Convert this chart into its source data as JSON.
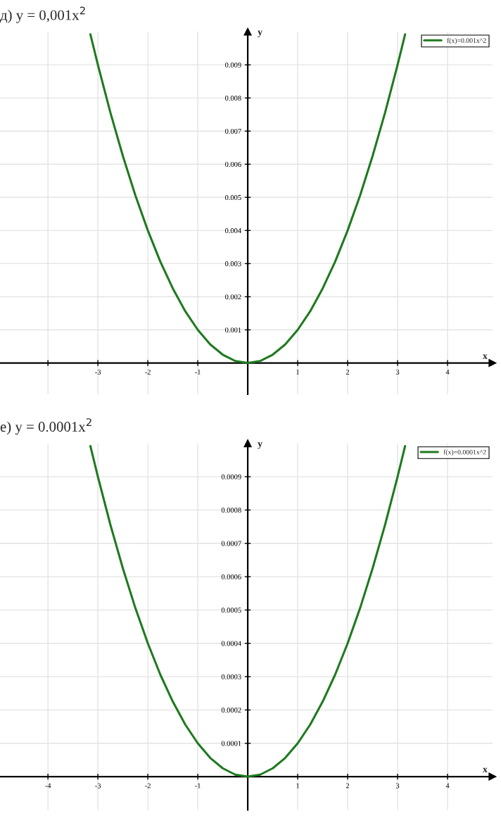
{
  "chart_data": [
    {
      "type": "line",
      "title": "д) y = 0,001x$^{2}$",
      "xlabel": "x",
      "ylabel": "y",
      "xlim": [
        -4.96,
        4.9
      ],
      "ylim": [
        -0.00094,
        0.01
      ],
      "xticks": [
        {
          "value": -4,
          "label": null
        },
        -3,
        -2,
        -1,
        1,
        2,
        3,
        4
      ],
      "yticks": [
        0.001,
        0.002,
        0.003,
        0.004,
        0.005,
        0.006,
        0.007,
        0.008,
        0.009
      ],
      "grid": true,
      "legend": "top right",
      "series": [
        {
          "name": "f(x)=0.001x^2",
          "color": "#1e7a1e",
          "x": [
            -3.15,
            -3,
            -2.75,
            -2.5,
            -2.25,
            -2,
            -1.75,
            -1.5,
            -1.25,
            -1,
            -0.75,
            -0.5,
            -0.25,
            0,
            0.25,
            0.5,
            0.75,
            1,
            1.25,
            1.5,
            1.75,
            2,
            2.25,
            2.5,
            2.75,
            3,
            3.15
          ],
          "values": [
            0.00992,
            0.009,
            0.00756,
            0.00625,
            0.00506,
            0.004,
            0.00306,
            0.00225,
            0.00156,
            0.001,
            0.00056,
            0.00025,
            6e-05,
            0,
            6e-05,
            0.00025,
            0.00056,
            0.001,
            0.00156,
            0.00225,
            0.00306,
            0.004,
            0.00506,
            0.00625,
            0.00756,
            0.009,
            0.00992
          ]
        }
      ]
    },
    {
      "type": "line",
      "title": "е) y = 0.0001x$^{2}$",
      "xlabel": "x",
      "ylabel": "y",
      "xlim": [
        -4.96,
        4.9
      ],
      "ylim": [
        -0.0001,
        0.001
      ],
      "xticks": [
        -4,
        -3,
        -2,
        -1,
        1,
        2,
        3,
        4
      ],
      "yticks": [
        0.0001,
        0.0002,
        0.0003,
        0.0004,
        0.0005,
        0.0006,
        0.0007,
        0.0008,
        0.0009
      ],
      "grid": true,
      "legend": "top right",
      "series": [
        {
          "name": "f(x)=0.0001x^2",
          "color": "#1e7a1e",
          "x": [
            -3.15,
            -3,
            -2.75,
            -2.5,
            -2.25,
            -2,
            -1.75,
            -1.5,
            -1.25,
            -1,
            -0.75,
            -0.5,
            -0.25,
            0,
            0.25,
            0.5,
            0.75,
            1,
            1.25,
            1.5,
            1.75,
            2,
            2.25,
            2.5,
            2.75,
            3,
            3.15
          ],
          "values": [
            0.000992,
            0.0009,
            0.000756,
            0.000625,
            0.000506,
            0.0004,
            0.000306,
            0.000225,
            0.000156,
            0.0001,
            5.6e-05,
            2.5e-05,
            6e-06,
            0,
            6e-06,
            2.5e-05,
            5.6e-05,
            0.0001,
            0.000156,
            0.000225,
            0.000306,
            0.0004,
            0.000506,
            0.000625,
            0.000756,
            0.0009,
            0.000992
          ]
        }
      ]
    }
  ]
}
